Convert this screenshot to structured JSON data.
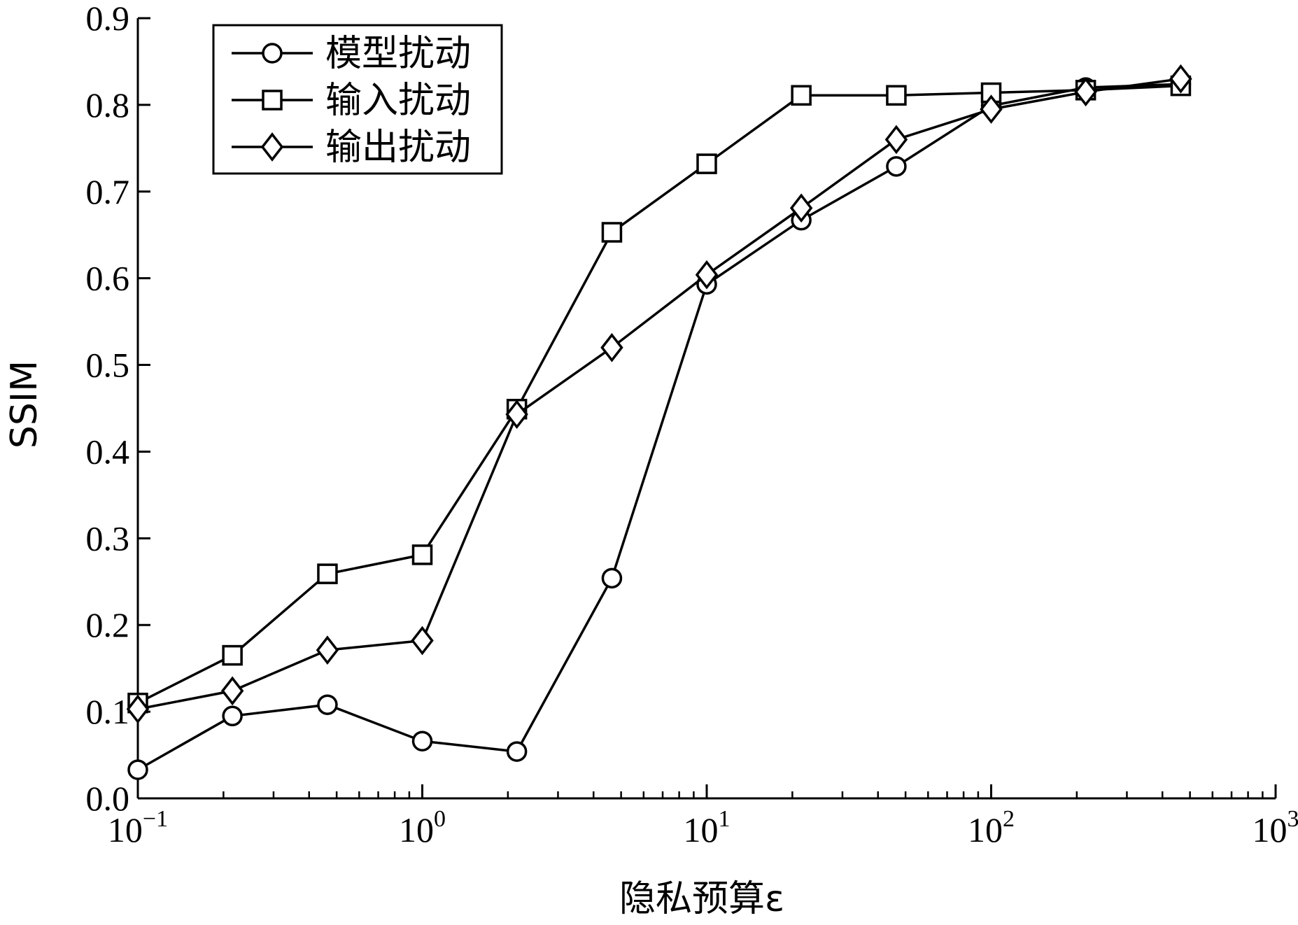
{
  "chart_data": {
    "type": "line",
    "xlabel": "隐私预算ε",
    "ylabel": "SSIM",
    "x_scale": "log",
    "xlim": [
      0.1,
      1000
    ],
    "ylim": [
      0,
      0.9
    ],
    "grid": false,
    "legend_position": "top-left",
    "x_ticks": [
      {
        "value": 0.1,
        "base": "10",
        "exp": "−1"
      },
      {
        "value": 1,
        "base": "10",
        "exp": "0"
      },
      {
        "value": 10,
        "base": "10",
        "exp": "1"
      },
      {
        "value": 100,
        "base": "10",
        "exp": "2"
      },
      {
        "value": 1000,
        "base": "10",
        "exp": "3"
      }
    ],
    "y_ticks": [
      {
        "value": 0.0,
        "label": "0.0"
      },
      {
        "value": 0.1,
        "label": "0.1"
      },
      {
        "value": 0.2,
        "label": "0.2"
      },
      {
        "value": 0.3,
        "label": "0.3"
      },
      {
        "value": 0.4,
        "label": "0.4"
      },
      {
        "value": 0.5,
        "label": "0.5"
      },
      {
        "value": 0.6,
        "label": "0.6"
      },
      {
        "value": 0.7,
        "label": "0.7"
      },
      {
        "value": 0.8,
        "label": "0.8"
      },
      {
        "value": 0.9,
        "label": "0.9"
      }
    ],
    "x": [
      0.1,
      0.215,
      0.464,
      1,
      2.15,
      4.64,
      10,
      21.5,
      46.4,
      100,
      215,
      464
    ],
    "series": [
      {
        "name": "模型扰动",
        "marker": "circle",
        "values": [
          0.033,
          0.095,
          0.108,
          0.066,
          0.054,
          0.254,
          0.593,
          0.667,
          0.729,
          0.799,
          0.82,
          0.824
        ]
      },
      {
        "name": "输入扰动",
        "marker": "square",
        "values": [
          0.11,
          0.165,
          0.259,
          0.281,
          0.449,
          0.653,
          0.732,
          0.811,
          0.811,
          0.814,
          0.817,
          0.822
        ]
      },
      {
        "name": "输出扰动",
        "marker": "diamond",
        "values": [
          0.103,
          0.124,
          0.171,
          0.182,
          0.443,
          0.52,
          0.604,
          0.681,
          0.76,
          0.795,
          0.815,
          0.83
        ]
      }
    ],
    "colors": {
      "line": "#000000",
      "marker_fill": "#ffffff",
      "background": "#ffffff"
    }
  }
}
